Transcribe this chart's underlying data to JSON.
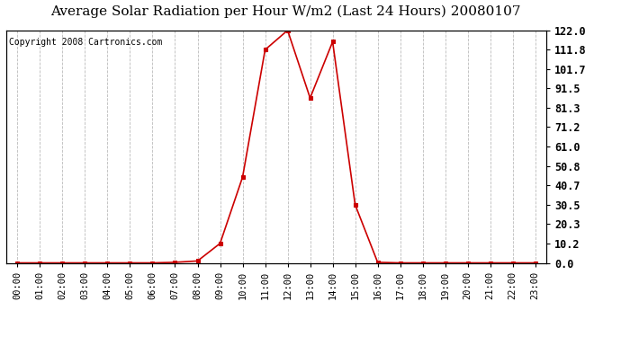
{
  "title": "Average Solar Radiation per Hour W/m2 (Last 24 Hours) 20080107",
  "copyright": "Copyright 2008 Cartronics.com",
  "hours": [
    "00:00",
    "01:00",
    "02:00",
    "03:00",
    "04:00",
    "05:00",
    "06:00",
    "07:00",
    "08:00",
    "09:00",
    "10:00",
    "11:00",
    "12:00",
    "13:00",
    "14:00",
    "15:00",
    "16:00",
    "17:00",
    "18:00",
    "19:00",
    "20:00",
    "21:00",
    "22:00",
    "23:00"
  ],
  "values": [
    0.0,
    0.0,
    0.0,
    0.0,
    0.0,
    0.0,
    0.0,
    0.3,
    1.0,
    10.2,
    45.0,
    111.8,
    122.0,
    86.5,
    116.0,
    30.5,
    0.3,
    0.0,
    0.0,
    0.0,
    0.0,
    0.0,
    0.0,
    0.0
  ],
  "y_ticks": [
    0.0,
    10.2,
    20.3,
    30.5,
    40.7,
    50.8,
    61.0,
    71.2,
    81.3,
    91.5,
    101.7,
    111.8,
    122.0
  ],
  "ymin": 0.0,
  "ymax": 122.0,
  "line_color": "#cc0000",
  "marker_color": "#cc0000",
  "bg_color": "#ffffff",
  "grid_color": "#bbbbbb",
  "title_fontsize": 11,
  "copyright_fontsize": 7,
  "tick_fontsize": 7.5,
  "ytick_fontsize": 8.5
}
